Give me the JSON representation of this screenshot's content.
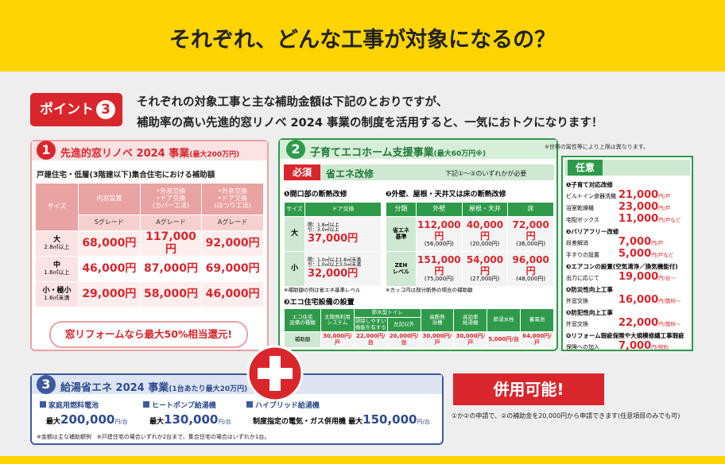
{
  "header": {
    "title": "それぞれ、どんな工事が対象になるの？"
  },
  "intro": {
    "badge": "ポイント",
    "badge_number": "3",
    "lines": [
      "それぞれの対象工事と主な補助金額は下記のとおりですが、",
      "補助率の高い先進的窓リノベ 2024 事業の制度を活用すると、一気におトクになります！"
    ]
  },
  "section1": {
    "number": "1",
    "title": "先進的窓リノベ 2024 事業",
    "max": "(最大200万円)",
    "subtitle": "戸建住宅・低層(3階建以下)集合住宅における補助額",
    "table": {
      "size_header": "サイズ",
      "headers": [
        "内窓設置",
        "•外窓交換\n•ドア交換\n(カバー工法)",
        "•外窓交換\n•ドア交換\n(はつり工法)"
      ],
      "grades": [
        "Sグレード",
        "Aグレード",
        "Aグレード"
      ],
      "rows": [
        {
          "size": "大",
          "range": "2.8㎡以上",
          "values": [
            "68,000円",
            "117,000円",
            "92,000円"
          ]
        },
        {
          "size": "中",
          "range": "1.6㎡以上",
          "values": [
            "46,000円",
            "87,000円",
            "69,000円"
          ]
        },
        {
          "size": "小・極小",
          "range": "1.6㎡未満",
          "values": [
            "29,000円",
            "58,000円",
            "46,000円"
          ]
        }
      ]
    },
    "callout": "窓リフォームなら最大50%相当還元!"
  },
  "section2": {
    "number": "2",
    "title": "子育てエコホーム支援事業",
    "max": "(最大60万円※)",
    "note": "※世帯の属性等により上限は異なります。",
    "required_badge": "必須",
    "required_title": "省エネ改修",
    "required_note": "下記①～③のいずれかが必要",
    "opening": {
      "title": "❶開口部の断熱改修",
      "headers": [
        "サイズ",
        "ドア交換"
      ],
      "rows": [
        {
          "size": "大",
          "condition": "開：1.8㎡以上\n引：3.0㎡以上",
          "value": "37,000円"
        },
        {
          "size": "小",
          "condition": "開：1.0㎡以上1.8㎡未満\n引：1.0㎡以上3.0㎡未満",
          "value": "32,000円"
        }
      ],
      "note": "※補助額の例は省エネ基準レベル"
    },
    "insulation": {
      "title": "❷外壁、屋根・天井又は床の断熱改修",
      "headers": [
        "分類",
        "外壁",
        "屋根・天井",
        "床"
      ],
      "rows": [
        {
          "class": "省エネ\n基準",
          "values": [
            "112,000円",
            "40,000円",
            "72,000円"
          ],
          "partial": [
            "(56,000円)",
            "(20,000円)",
            "(36,000円)"
          ]
        },
        {
          "class": "ZEH\nレベル",
          "values": [
            "151,000円",
            "54,000円",
            "96,000円"
          ],
          "partial": [
            "(75,000円)",
            "(27,000円)",
            "(48,000円)"
          ]
        }
      ],
      "note": "※カッコ内は部分断熱の場合の補助額"
    },
    "equipment": {
      "title": "❸エコ住宅設備の設置",
      "type_header": "エコ住宅\n設備の種類",
      "amount_header": "補助額",
      "toilet_header": "節水型トイレ",
      "headers": [
        "太陽熱利用\nシステム",
        "掃除しやすい\n機能を有する",
        "左記以外",
        "高断熱\n浴槽",
        "高効率\n給湯機",
        "節湯水栓",
        "蓄電池"
      ],
      "values": [
        "30,000円/戸",
        "22,000円/台",
        "20,000円/台",
        "30,000円/戸",
        "30,000円/戸",
        "5,000円/台",
        "64,000円/戸"
      ]
    },
    "optional": {
      "title": "任意",
      "groups": [
        {
          "heading": "❶子育て対応改修",
          "items": [
            {
              "name": "ビルトイン食器洗機",
              "amount": "21,000",
              "unit": "円/戸"
            },
            {
              "name": "浴室乾燥機",
              "amount": "23,000",
              "unit": "円/戸"
            },
            {
              "name": "宅配ボックス",
              "amount": "11,000",
              "unit": "円/戸など"
            }
          ]
        },
        {
          "heading": "❷バリアフリー改修",
          "items": [
            {
              "name": "段差解消",
              "amount": "7,000",
              "unit": "円/戸"
            },
            {
              "name": "手すりの設置",
              "amount": "5,000",
              "unit": "円/戸など"
            }
          ]
        },
        {
          "heading": "❸エアコンの設置(空気清浄／換気機能付)",
          "items": [
            {
              "name": "出力に応じて",
              "amount": "19,000",
              "unit": "円/台～"
            }
          ]
        },
        {
          "heading": "❹防災性向上工事",
          "items": [
            {
              "name": "外窓交換",
              "amount": "16,000",
              "unit": "円/箇所～"
            }
          ]
        },
        {
          "heading": "❺防犯性向上工事",
          "items": [
            {
              "name": "外窓交換",
              "amount": "22,000",
              "unit": "円/箇所～"
            }
          ]
        },
        {
          "heading": "❻リフォーム瑕疵保険や大規模修繕工事瑕疵",
          "items": [
            {
              "name": "保険への加入",
              "amount": "7,000",
              "unit": "円/契約"
            }
          ]
        }
      ]
    }
  },
  "section3": {
    "number": "3",
    "title": "給湯省エネ 2024 事業",
    "max": "(1台あたり最大20万円)",
    "items": [
      {
        "name": "家庭用燃料電池",
        "prefix": "最大",
        "amount": "200,000",
        "unit": "円/台"
      },
      {
        "name": "ヒートポンプ給湯機",
        "prefix": "最大",
        "amount": "130,000",
        "unit": "円/台"
      },
      {
        "name": "ハイブリッド給湯機",
        "prefix": "制度指定の電気・ガス併用機 最大",
        "amount": "150,000",
        "unit": "円/台"
      }
    ],
    "note": "※金額は主な補助額例　※戸建住宅の場合いずれか2台まで、集合住宅の場合はいずれか1台。"
  },
  "combo": {
    "label": "併用可能!",
    "note": "①か②の申請で、②の補助金を20,000円から申請できます(任意項目のみでも可)"
  }
}
